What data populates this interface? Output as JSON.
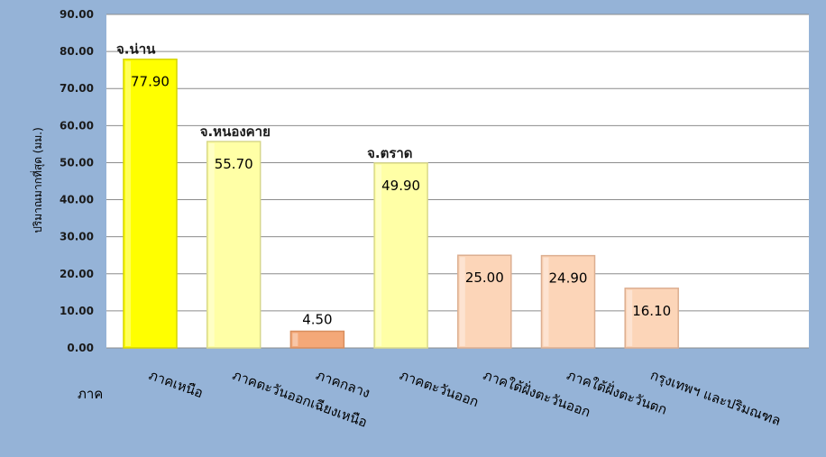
{
  "chart_data": {
    "type": "bar",
    "title": "",
    "xlabel": "ภาค",
    "ylabel": "ปริมาณมากที่สุด (มม.)",
    "ylim": [
      0,
      90
    ],
    "ytick_labels": [
      "0.00",
      "10.00",
      "20.00",
      "30.00",
      "40.00",
      "50.00",
      "60.00",
      "70.00",
      "80.00",
      "90.00"
    ],
    "grid": true,
    "legend": "none",
    "categories": [
      "ภาคเหนือ",
      "ภาคตะวันออกเฉียงเหนือ",
      "ภาคกลาง",
      "ภาคตะวันออก",
      "ภาคใต้ฝั่งตะวันออก",
      "ภาคใต้ฝั่งตะวันตก",
      "กรุงเทพฯ และปริมณฑล"
    ],
    "values": [
      77.9,
      55.7,
      4.5,
      49.9,
      25.0,
      24.9,
      16.1
    ],
    "value_labels": [
      "77.90",
      "55.70",
      "4.50",
      "49.90",
      "25.00",
      "24.90",
      "16.10"
    ],
    "annotations": [
      "จ.น่าน",
      "จ.หนองคาย",
      "",
      "จ.ตราด",
      "",
      "",
      ""
    ],
    "bar_colors": [
      "#ffff00",
      "#ffffa6",
      "#f4a878",
      "#ffffa6",
      "#fcd5b8",
      "#fcd5b8",
      "#fcd5b8"
    ],
    "bar_edge_colors": [
      "#d4d400",
      "#d8d88a",
      "#d88e5e",
      "#d8d88a",
      "#dcae90",
      "#dcae90",
      "#dcae90"
    ],
    "plot_background": "#ffffff",
    "page_background": "#95b3d7"
  }
}
